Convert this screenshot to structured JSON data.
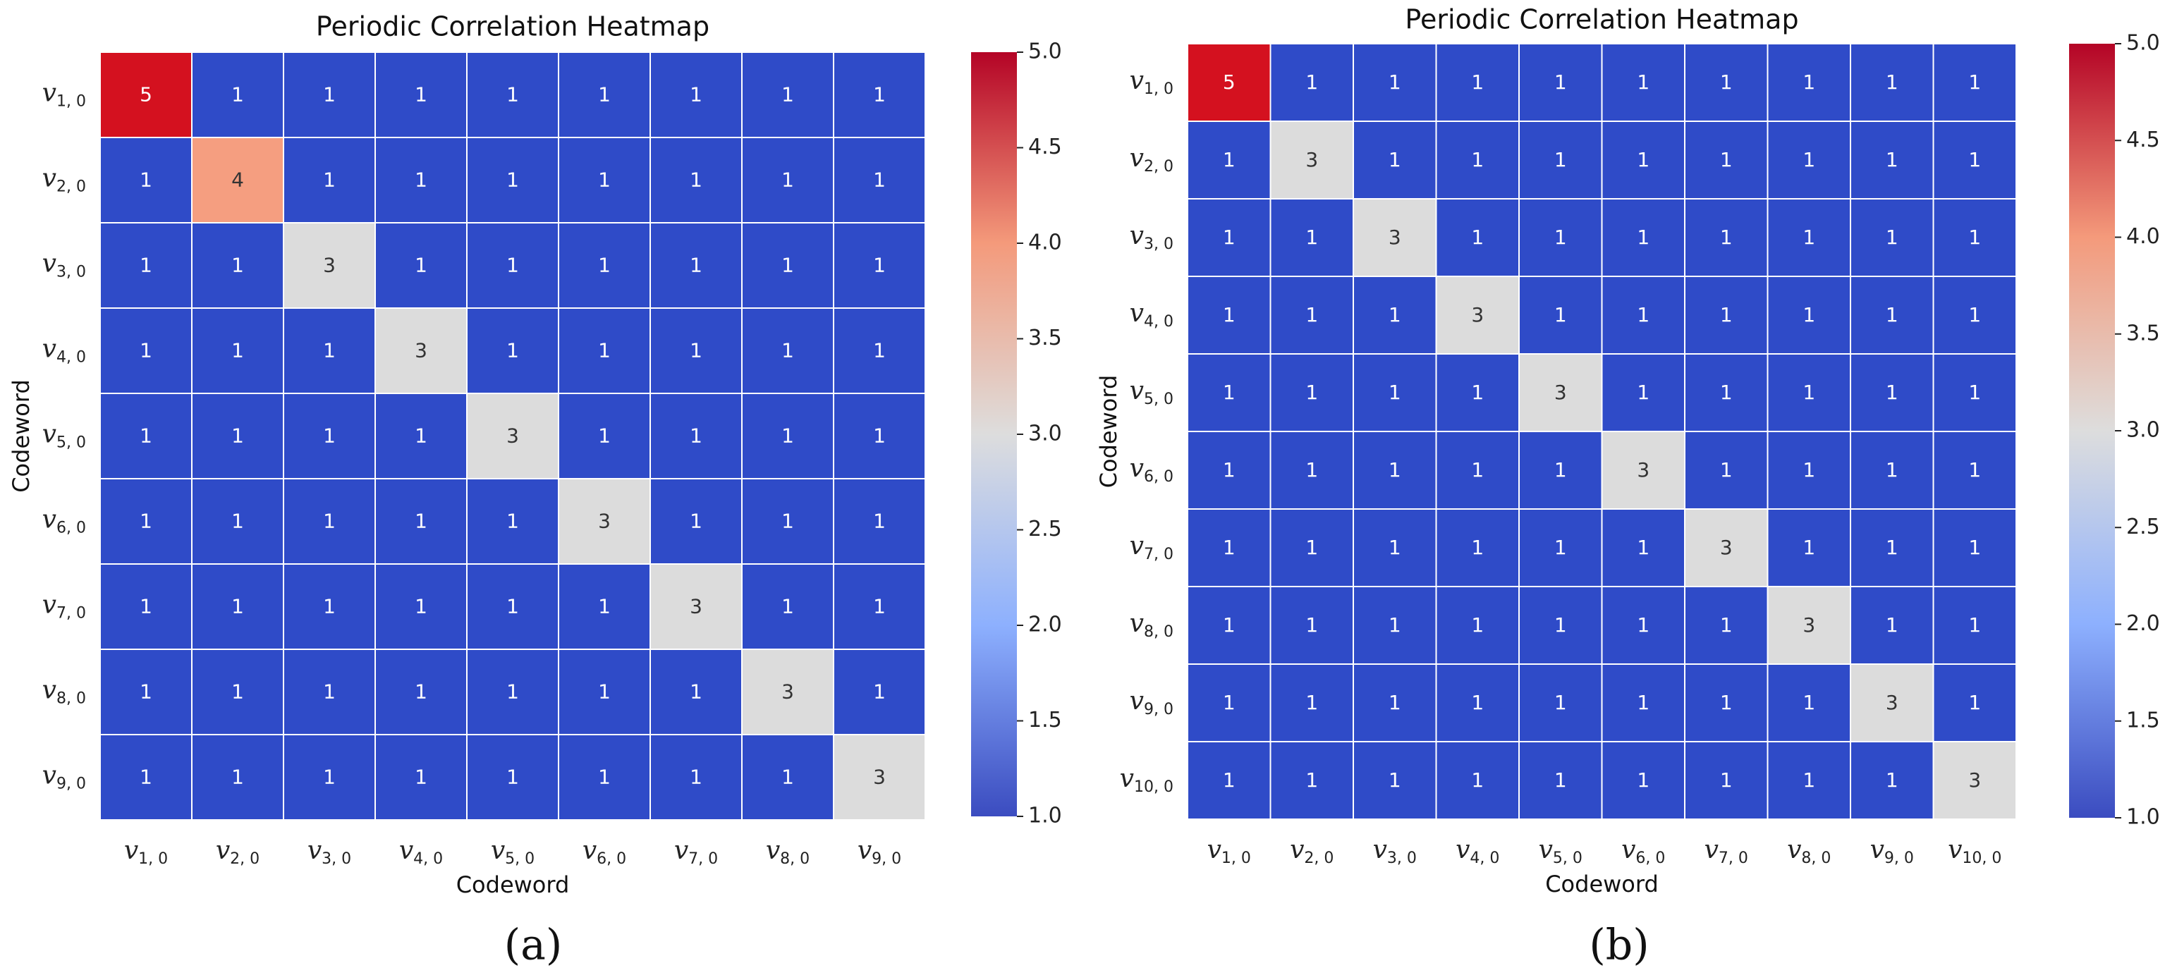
{
  "chart_data": [
    {
      "type": "heatmap",
      "panel_label": "(a)",
      "title": "Periodic Correlation Heatmap",
      "xlabel": "Codeword",
      "ylabel": "Codeword",
      "labels": [
        {
          "base": "v",
          "sub": "1, 0"
        },
        {
          "base": "v",
          "sub": "2, 0"
        },
        {
          "base": "v",
          "sub": "3, 0"
        },
        {
          "base": "v",
          "sub": "4, 0"
        },
        {
          "base": "v",
          "sub": "5, 0"
        },
        {
          "base": "v",
          "sub": "6, 0"
        },
        {
          "base": "v",
          "sub": "7, 0"
        },
        {
          "base": "v",
          "sub": "8, 0"
        },
        {
          "base": "v",
          "sub": "9, 0"
        }
      ],
      "matrix": [
        [
          5,
          1,
          1,
          1,
          1,
          1,
          1,
          1,
          1
        ],
        [
          1,
          4,
          1,
          1,
          1,
          1,
          1,
          1,
          1
        ],
        [
          1,
          1,
          3,
          1,
          1,
          1,
          1,
          1,
          1
        ],
        [
          1,
          1,
          1,
          3,
          1,
          1,
          1,
          1,
          1
        ],
        [
          1,
          1,
          1,
          1,
          3,
          1,
          1,
          1,
          1
        ],
        [
          1,
          1,
          1,
          1,
          1,
          3,
          1,
          1,
          1
        ],
        [
          1,
          1,
          1,
          1,
          1,
          1,
          3,
          1,
          1
        ],
        [
          1,
          1,
          1,
          1,
          1,
          1,
          1,
          3,
          1
        ],
        [
          1,
          1,
          1,
          1,
          1,
          1,
          1,
          1,
          3
        ]
      ],
      "colorbar": {
        "range": [
          1.0,
          5.0
        ],
        "ticks": [
          "1.0",
          "1.5",
          "2.0",
          "2.5",
          "3.0",
          "3.5",
          "4.0",
          "4.5",
          "5.0"
        ],
        "colormap": "coolwarm"
      }
    },
    {
      "type": "heatmap",
      "panel_label": "(b)",
      "title": "Periodic Correlation Heatmap",
      "xlabel": "Codeword",
      "ylabel": "Codeword",
      "labels": [
        {
          "base": "v",
          "sub": "1, 0"
        },
        {
          "base": "v",
          "sub": "2, 0"
        },
        {
          "base": "v",
          "sub": "3, 0"
        },
        {
          "base": "v",
          "sub": "4, 0"
        },
        {
          "base": "v",
          "sub": "5, 0"
        },
        {
          "base": "v",
          "sub": "6, 0"
        },
        {
          "base": "v",
          "sub": "7, 0"
        },
        {
          "base": "v",
          "sub": "8, 0"
        },
        {
          "base": "v",
          "sub": "9, 0"
        },
        {
          "base": "v",
          "sub": "10, 0"
        }
      ],
      "matrix": [
        [
          5,
          1,
          1,
          1,
          1,
          1,
          1,
          1,
          1,
          1
        ],
        [
          1,
          3,
          1,
          1,
          1,
          1,
          1,
          1,
          1,
          1
        ],
        [
          1,
          1,
          3,
          1,
          1,
          1,
          1,
          1,
          1,
          1
        ],
        [
          1,
          1,
          1,
          3,
          1,
          1,
          1,
          1,
          1,
          1
        ],
        [
          1,
          1,
          1,
          1,
          3,
          1,
          1,
          1,
          1,
          1
        ],
        [
          1,
          1,
          1,
          1,
          1,
          3,
          1,
          1,
          1,
          1
        ],
        [
          1,
          1,
          1,
          1,
          1,
          1,
          3,
          1,
          1,
          1
        ],
        [
          1,
          1,
          1,
          1,
          1,
          1,
          1,
          3,
          1,
          1
        ],
        [
          1,
          1,
          1,
          1,
          1,
          1,
          1,
          1,
          3,
          1
        ],
        [
          1,
          1,
          1,
          1,
          1,
          1,
          1,
          1,
          1,
          3
        ]
      ],
      "colorbar": {
        "range": [
          1.0,
          5.0
        ],
        "ticks": [
          "1.0",
          "1.5",
          "2.0",
          "2.5",
          "3.0",
          "3.5",
          "4.0",
          "4.5",
          "5.0"
        ],
        "colormap": "coolwarm"
      }
    }
  ]
}
